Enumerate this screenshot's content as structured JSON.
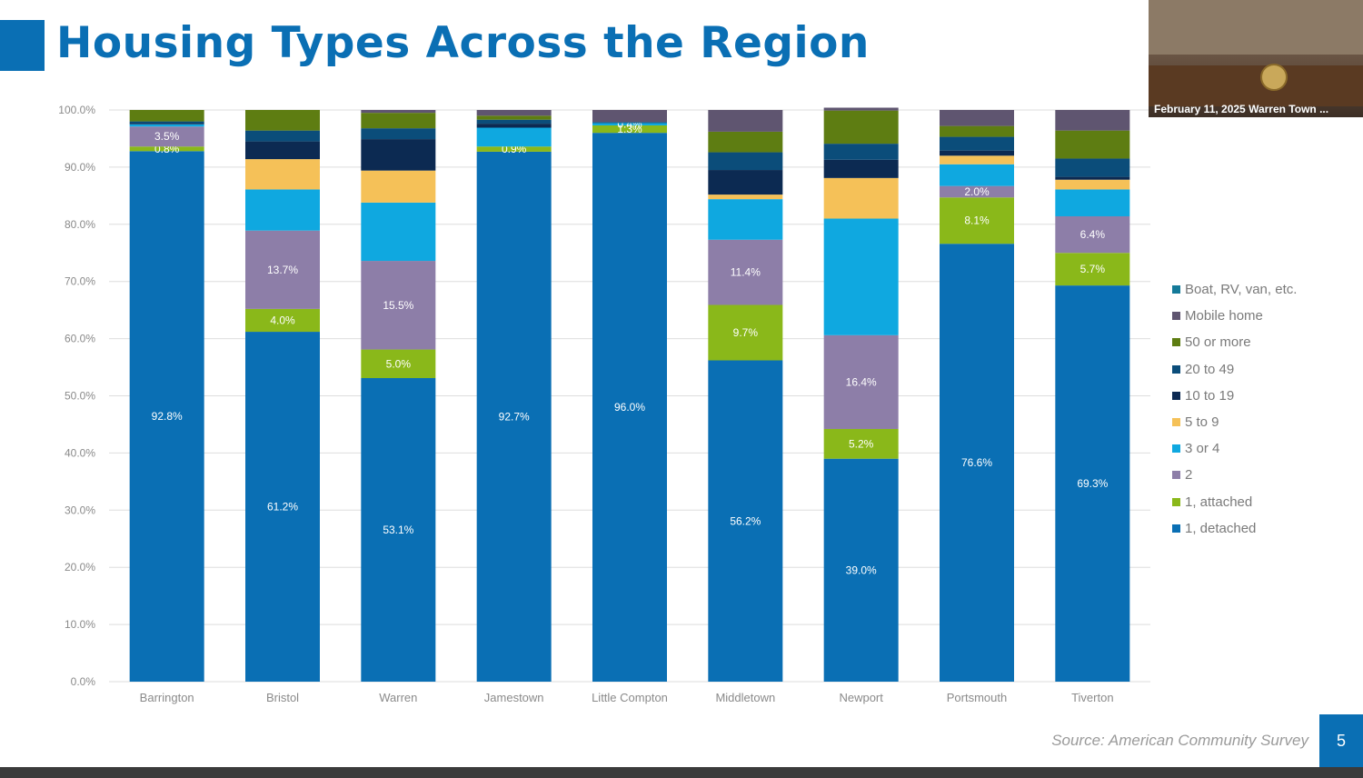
{
  "slide": {
    "title": "Housing Types Across the Region",
    "source": "Source: American Community Survey",
    "page_number": "5"
  },
  "video_thumbnail": {
    "caption": "February 11, 2025 Warren Town ..."
  },
  "colors": {
    "title": "#0a6fb4",
    "grid": "#dedede",
    "tick_text": "#8a8a8a",
    "background": "#ffffff"
  },
  "chart_data": {
    "type": "bar",
    "stacked": true,
    "categories": [
      "Barrington",
      "Bristol",
      "Warren",
      "Jamestown",
      "Little Compton",
      "Middletown",
      "Newport",
      "Portsmouth",
      "Tiverton"
    ],
    "ylim": [
      0,
      100
    ],
    "yticks": [
      "0.0%",
      "10.0%",
      "20.0%",
      "30.0%",
      "40.0%",
      "50.0%",
      "60.0%",
      "70.0%",
      "80.0%",
      "90.0%",
      "100.0%"
    ],
    "grid": true,
    "legend_position": "right",
    "series": [
      {
        "name": "1, detached",
        "color": "#0a6fb4",
        "label_color": "#ffffff",
        "values": [
          92.8,
          61.2,
          53.1,
          92.7,
          96.0,
          56.2,
          39.0,
          76.6,
          69.3
        ],
        "labels": [
          "92.8%",
          "61.2%",
          "53.1%",
          "92.7%",
          "96.0%",
          "56.2%",
          "39.0%",
          "76.6%",
          "69.3%"
        ]
      },
      {
        "name": "1, attached",
        "color": "#8ab81a",
        "label_color": "#ffffff",
        "values": [
          0.8,
          4.0,
          5.0,
          0.9,
          1.3,
          9.7,
          5.2,
          8.1,
          5.7
        ],
        "labels": [
          "0.8%",
          "4.0%",
          "5.0%",
          "0.9%",
          "1.3%",
          "9.7%",
          "5.2%",
          "8.1%",
          "5.7%"
        ]
      },
      {
        "name": "2",
        "color": "#8d7ea8",
        "label_color": "#ffffff",
        "values": [
          3.5,
          13.7,
          15.5,
          0.0,
          0.0,
          11.4,
          16.4,
          2.0,
          6.4
        ],
        "labels": [
          "3.5%",
          "13.7%",
          "15.5%",
          "",
          "",
          "11.4%",
          "16.4%",
          "2.0%",
          "6.4%"
        ]
      },
      {
        "name": "3 or 4",
        "color": "#0fa8e0",
        "label_color": "#ffffff",
        "values": [
          0.4,
          7.2,
          10.2,
          3.3,
          0.4,
          7.1,
          20.4,
          3.8,
          4.7
        ],
        "labels": [
          "",
          "",
          "",
          "",
          "0.4%",
          "",
          "",
          "",
          ""
        ]
      },
      {
        "name": "5 to 9",
        "color": "#f5c158",
        "label_color": "#ffffff",
        "values": [
          0.0,
          5.3,
          5.6,
          0.0,
          0.0,
          0.8,
          7.1,
          1.5,
          1.7
        ],
        "labels": [
          "",
          "",
          "",
          "",
          "",
          "",
          "",
          "",
          ""
        ]
      },
      {
        "name": "10 to 19",
        "color": "#0c2a52",
        "label_color": "#ffffff",
        "values": [
          0.2,
          3.1,
          5.5,
          0.7,
          0.0,
          4.3,
          3.2,
          0.9,
          0.5
        ],
        "labels": [
          "",
          "",
          "",
          "",
          "",
          "",
          "",
          "",
          ""
        ]
      },
      {
        "name": "20 to 49",
        "color": "#0b4d7a",
        "label_color": "#ffffff",
        "values": [
          0.3,
          1.9,
          1.9,
          0.7,
          0.2,
          3.1,
          2.8,
          2.4,
          3.2
        ],
        "labels": [
          "",
          "",
          "",
          "",
          "",
          "",
          "",
          "",
          ""
        ]
      },
      {
        "name": "50 or more",
        "color": "#5e7d12",
        "label_color": "#ffffff",
        "values": [
          2.0,
          3.6,
          2.7,
          0.7,
          0.0,
          3.6,
          5.8,
          1.9,
          4.9
        ],
        "labels": [
          "",
          "",
          "",
          "",
          "",
          "",
          "",
          "",
          ""
        ]
      },
      {
        "name": "Mobile home",
        "color": "#5f5570",
        "label_color": "#ffffff",
        "values": [
          0.0,
          0.0,
          0.5,
          1.0,
          2.1,
          3.8,
          0.5,
          2.8,
          3.6
        ],
        "labels": [
          "",
          "",
          "",
          "",
          "",
          "",
          "",
          "",
          ""
        ]
      },
      {
        "name": "Boat, RV, van, etc.",
        "color": "#147a99",
        "label_color": "#ffffff",
        "values": [
          0.0,
          0.0,
          0.0,
          0.0,
          0.0,
          0.0,
          0.0,
          0.0,
          0.0
        ],
        "labels": [
          "",
          "",
          "",
          "",
          "",
          "",
          "",
          "",
          ""
        ]
      }
    ],
    "legend_order": [
      "Boat, RV, van, etc.",
      "Mobile home",
      "50 or more",
      "20 to 49",
      "10 to 19",
      "5 to 9",
      "3 or 4",
      "2",
      "1, attached",
      "1, detached"
    ]
  }
}
